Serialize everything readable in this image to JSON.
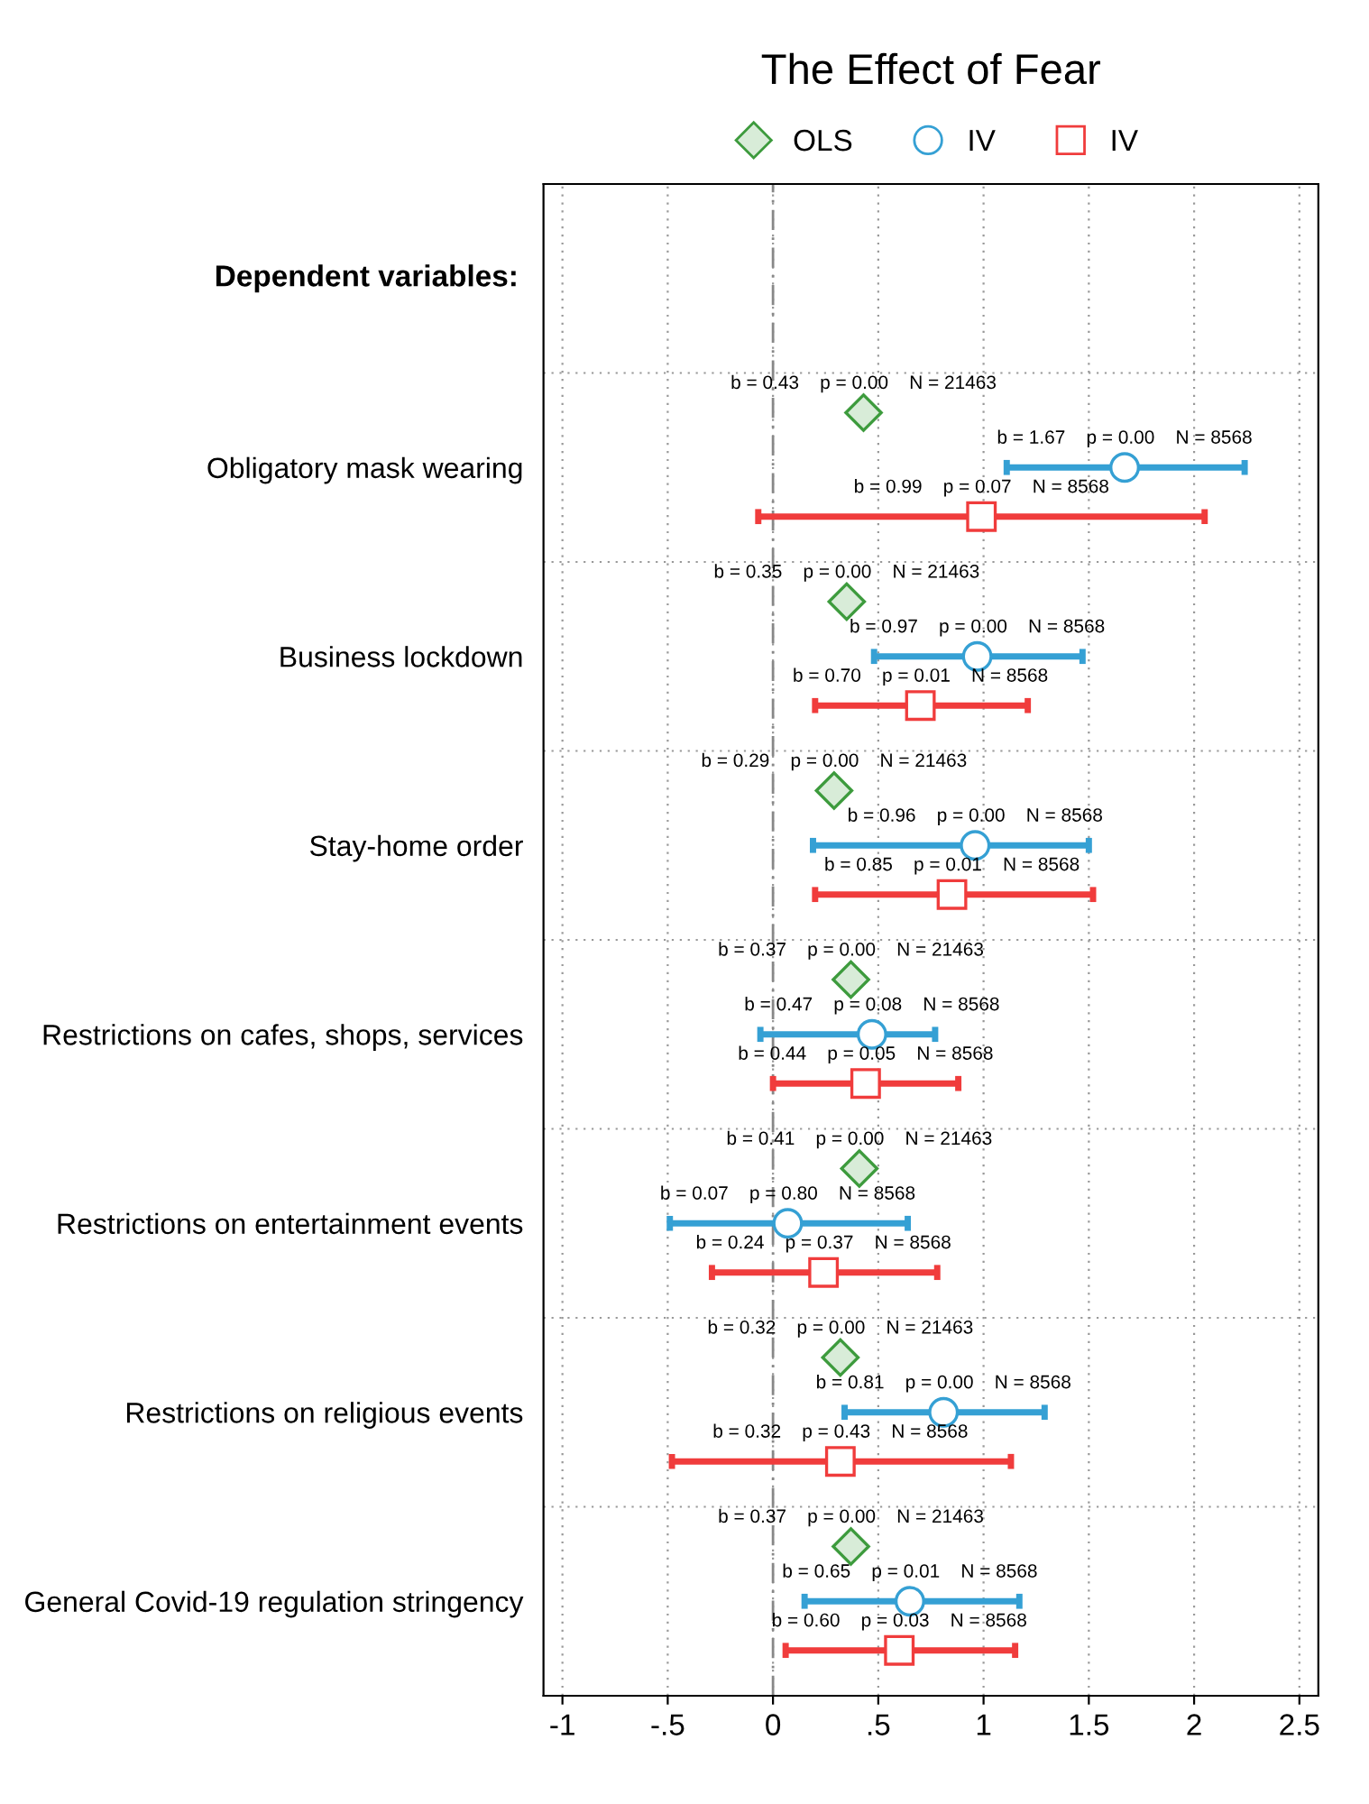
{
  "chart_data": {
    "type": "scatter",
    "orientation": "horizontal",
    "title": "The Effect of Fear",
    "categories": [
      "Obligatory mask wearing",
      "Business lockdown",
      "Stay-home order",
      "Restrictions on cafes, shops, services",
      "Restrictions on entertainment events",
      "Restrictions on religious events",
      "General Covid-19 regulation stringency"
    ],
    "series": [
      {
        "name": "OLS",
        "color": "#3d9b3d",
        "marker": "diamond",
        "values": [
          0.43,
          0.35,
          0.29,
          0.37,
          0.41,
          0.32,
          0.37
        ],
        "value_labels": [
          "b = 0.43    p = 0.00    N = 21463",
          "b = 0.35    p = 0.00    N = 21463",
          "b = 0.29    p = 0.00    N = 21463",
          "b = 0.37    p = 0.00    N = 21463",
          "b = 0.41    p = 0.00    N = 21463",
          "b = 0.32    p = 0.00    N = 21463",
          "b = 0.37    p = 0.00    N = 21463"
        ]
      },
      {
        "name": "IV",
        "color": "#35a0d4",
        "marker": "circle",
        "values": [
          1.67,
          0.97,
          0.96,
          0.47,
          0.07,
          0.81,
          0.65
        ],
        "errors": [
          [
            1.11,
            2.24
          ],
          [
            0.48,
            1.47
          ],
          [
            0.19,
            1.5
          ],
          [
            -0.06,
            0.77
          ],
          [
            -0.49,
            0.64
          ],
          [
            0.34,
            1.29
          ],
          [
            0.15,
            1.17
          ]
        ],
        "value_labels": [
          "b = 1.67    p = 0.00    N = 8568",
          "b = 0.97    p = 0.00    N = 8568",
          "b = 0.96    p = 0.00    N = 8568",
          "b = 0.47    p = 0.08    N = 8568",
          "b = 0.07    p = 0.80    N = 8568",
          "b = 0.81    p = 0.00    N = 8568",
          "b = 0.65    p = 0.01    N = 8568"
        ]
      },
      {
        "name": "IV",
        "color": "#f03c3c",
        "marker": "square",
        "values": [
          0.99,
          0.7,
          0.85,
          0.44,
          0.24,
          0.32,
          0.6
        ],
        "errors": [
          [
            -0.07,
            2.05
          ],
          [
            0.2,
            1.21
          ],
          [
            0.2,
            1.52
          ],
          [
            0.0,
            0.88
          ],
          [
            -0.29,
            0.78
          ],
          [
            -0.48,
            1.13
          ],
          [
            0.06,
            1.15
          ]
        ],
        "value_labels": [
          "b = 0.99    p = 0.07    N = 8568",
          "b = 0.70    p = 0.01    N = 8568",
          "b = 0.85    p = 0.01    N = 8568",
          "b = 0.44    p = 0.05    N = 8568",
          "b = 0.24    p = 0.37    N = 8568",
          "b = 0.32    p = 0.43    N = 8568",
          "b = 0.60    p = 0.03    N = 8568"
        ]
      }
    ],
    "xlim": [
      -1.09,
      2.59
    ],
    "xticks": [
      -1,
      {
        "value": -0.5,
        "label": "-.5"
      },
      0,
      {
        "value": 0.5,
        "label": ".5"
      },
      1,
      1.5,
      2,
      2.5
    ],
    "ref_lines": [
      {
        "axis": "x",
        "value": 0,
        "color": "#888888",
        "line_style": "dashed"
      }
    ],
    "annotations": [
      "Dependent variables:"
    ],
    "grid": true,
    "legend": "top"
  }
}
